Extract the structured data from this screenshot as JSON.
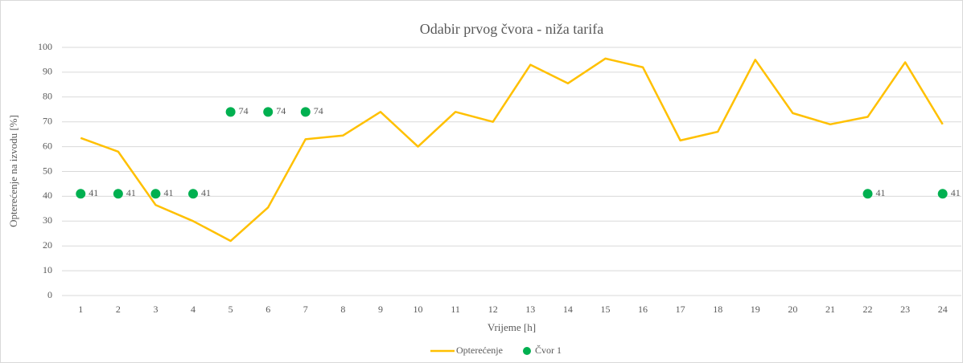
{
  "chart_data": {
    "type": "line",
    "title": "Odabir prvog čvora - niža tarifa",
    "x_label": "Vrijeme [h]",
    "y_label": "Opterećenje na izvodu [%]",
    "categories": [
      "1",
      "2",
      "3",
      "4",
      "5",
      "6",
      "7",
      "8",
      "9",
      "10",
      "11",
      "12",
      "13",
      "14",
      "15",
      "16",
      "17",
      "18",
      "19",
      "20",
      "21",
      "22",
      "23",
      "24"
    ],
    "series": [
      {
        "name": "Opterećenje",
        "type": "line",
        "color": "#ffc000",
        "values": [
          63.5,
          58,
          36.5,
          30,
          22,
          35.5,
          63,
          64.5,
          74,
          60,
          74,
          70,
          93,
          85.5,
          95.5,
          92,
          62.5,
          66,
          95,
          73.5,
          69,
          72,
          94,
          69
        ]
      },
      {
        "name": "Čvor 1",
        "type": "scatter",
        "color": "#00b050",
        "data_labels": true,
        "values": [
          41,
          41,
          41,
          41,
          74,
          74,
          74,
          null,
          null,
          null,
          null,
          null,
          null,
          null,
          null,
          null,
          null,
          null,
          null,
          null,
          null,
          41,
          null,
          41
        ]
      }
    ],
    "ylim": [
      0,
      100
    ],
    "yticks": [
      0,
      10,
      20,
      30,
      40,
      50,
      60,
      70,
      80,
      90,
      100
    ],
    "grid": true,
    "legend": "bottom"
  }
}
